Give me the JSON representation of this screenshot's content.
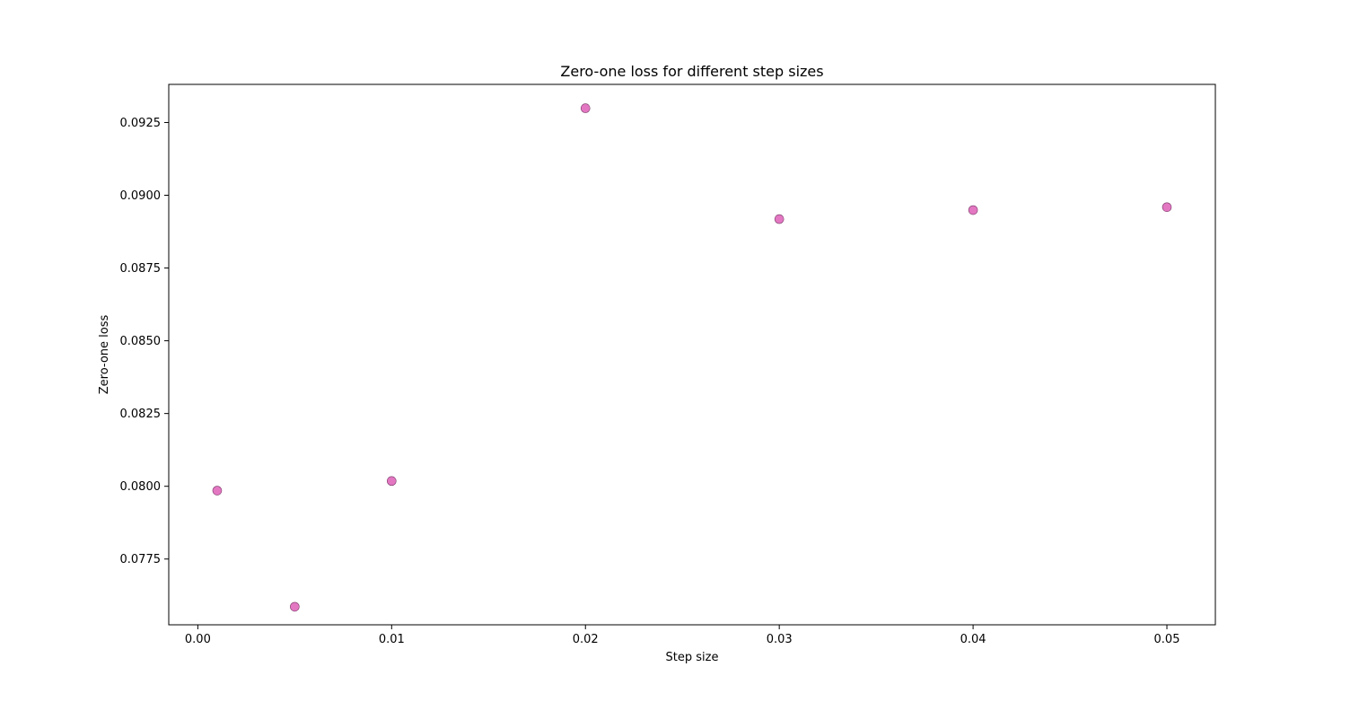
{
  "chart_data": {
    "type": "scatter",
    "title": "Zero-one loss for different step sizes",
    "xlabel": "Step size",
    "ylabel": "Zero-one loss",
    "xlim": [
      -0.0015,
      0.0525
    ],
    "ylim": [
      0.07524,
      0.09381
    ],
    "xticks": [
      0.0,
      0.01,
      0.02,
      0.03,
      0.04,
      0.05
    ],
    "xtick_labels": [
      "0.00",
      "0.01",
      "0.02",
      "0.03",
      "0.04",
      "0.05"
    ],
    "yticks": [
      0.0775,
      0.08,
      0.0825,
      0.085,
      0.0875,
      0.09,
      0.0925
    ],
    "ytick_labels": [
      "0.0775",
      "0.0800",
      "0.0825",
      "0.0850",
      "0.0875",
      "0.0900",
      "0.0925"
    ],
    "grid": false,
    "marker_color": "#e377c2",
    "marker_edge_color": "#7a3a68",
    "series": [
      {
        "x": [
          0.001,
          0.005,
          0.01,
          0.02,
          0.03,
          0.04,
          0.05
        ],
        "y": [
          0.07985,
          0.07586,
          0.08018,
          0.09299,
          0.08918,
          0.08949,
          0.08959
        ]
      }
    ]
  }
}
